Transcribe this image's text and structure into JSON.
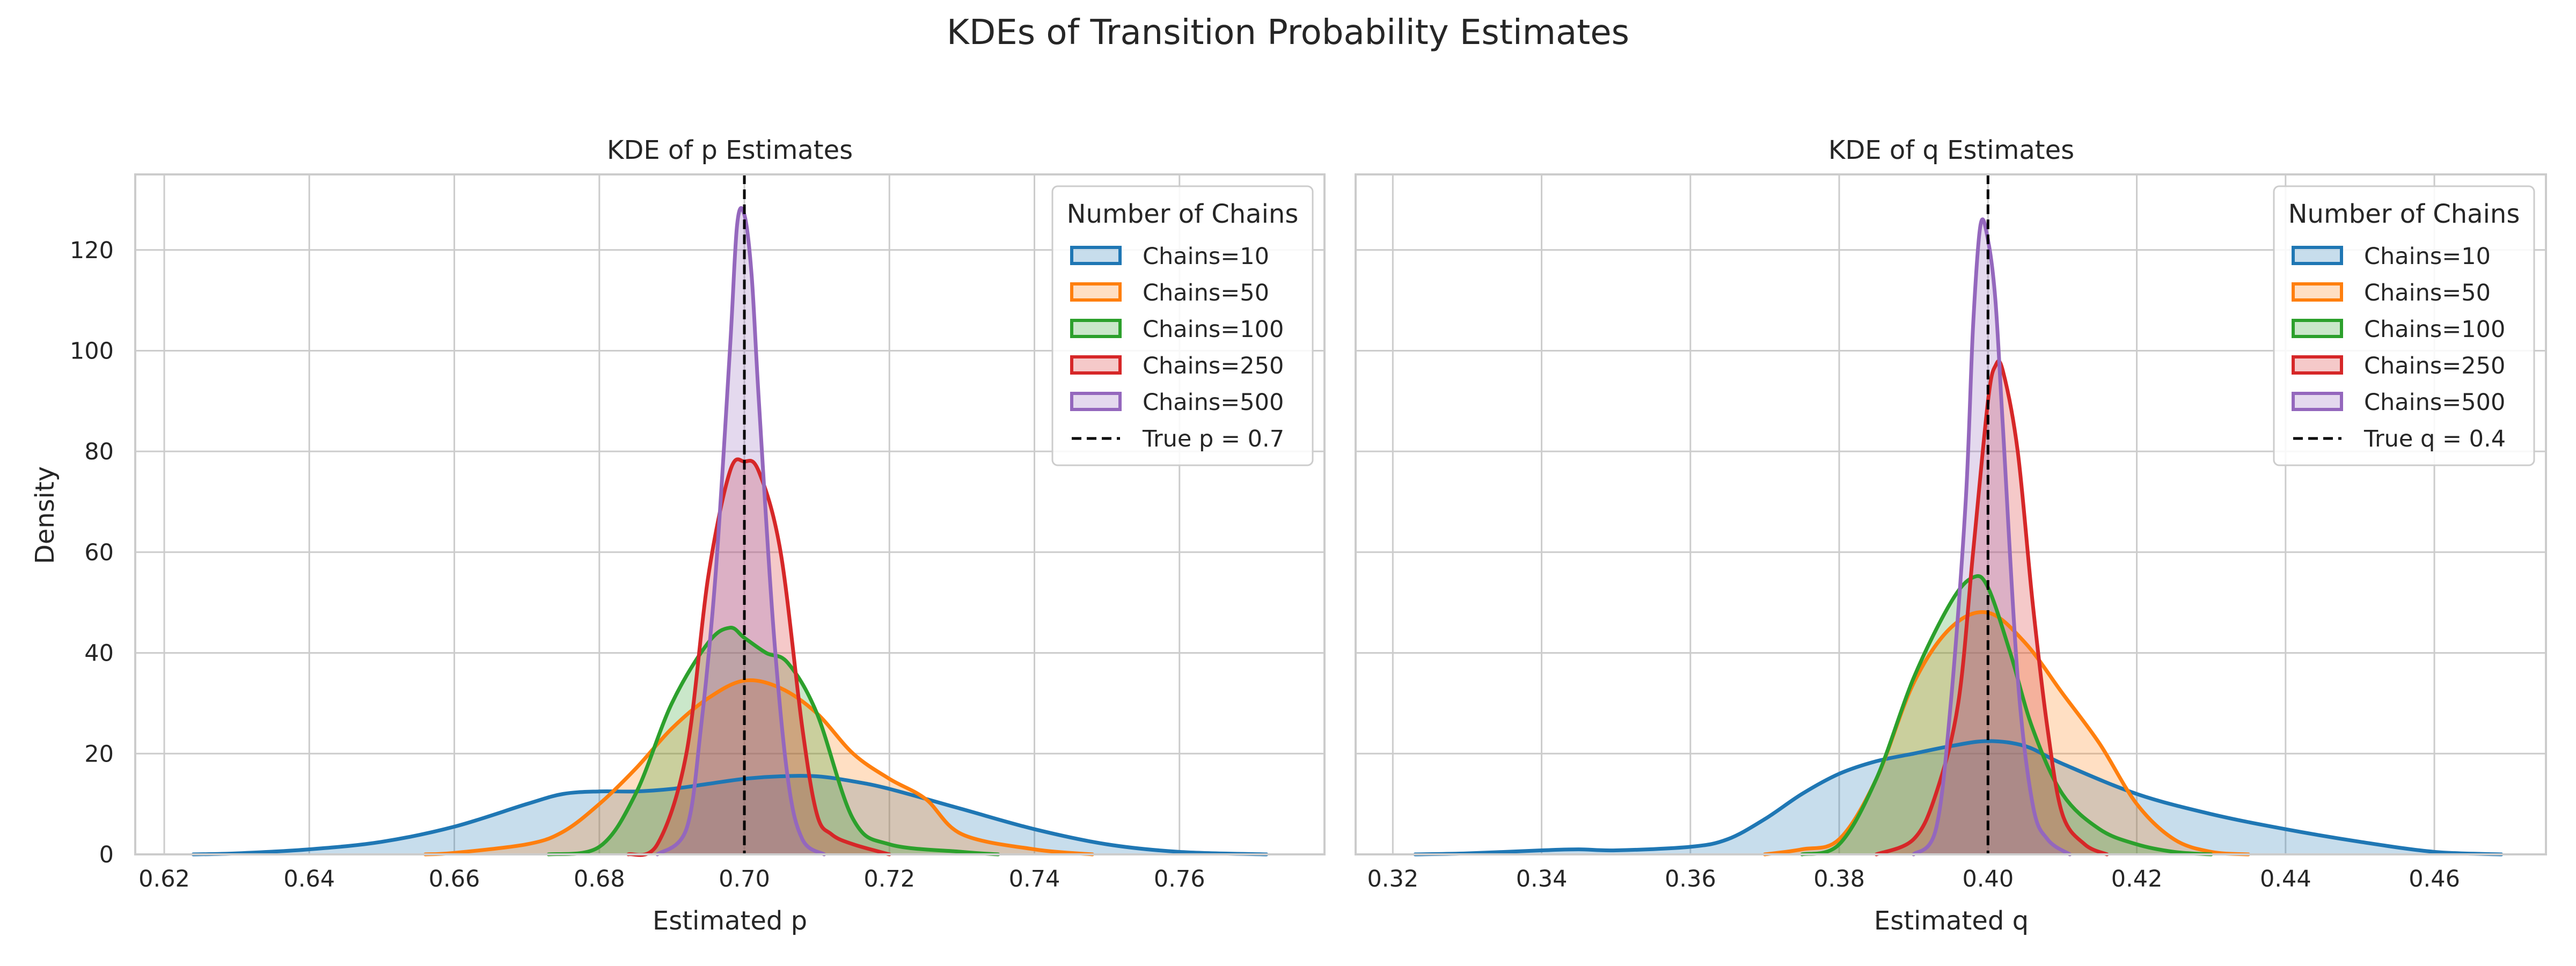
{
  "figure": {
    "suptitle": "KDEs of Transition Probability Estimates"
  },
  "chart_data": [
    {
      "type": "area",
      "title": "KDE of p Estimates",
      "xlabel": "Estimated p",
      "ylabel": "Density",
      "xlim": [
        0.616,
        0.78
      ],
      "ylim": [
        0,
        135
      ],
      "xticks": [
        0.62,
        0.64,
        0.66,
        0.68,
        0.7,
        0.72,
        0.74,
        0.76
      ],
      "xtick_labels": [
        "0.62",
        "0.64",
        "0.66",
        "0.68",
        "0.70",
        "0.72",
        "0.74",
        "0.76"
      ],
      "yticks": [
        0,
        20,
        40,
        60,
        80,
        100,
        120
      ],
      "ytick_labels": [
        "0",
        "20",
        "40",
        "60",
        "80",
        "100",
        "120"
      ],
      "grid": true,
      "legend": {
        "title": "Number of Chains",
        "placement": "top-right",
        "entries": [
          "Chains=10",
          "Chains=50",
          "Chains=100",
          "Chains=250",
          "Chains=500",
          "True p = 0.7"
        ]
      },
      "true_value": {
        "label": "True p = 0.7",
        "x": 0.7
      },
      "series": [
        {
          "name": "Chains=10",
          "color": "#1f77b4",
          "x": [
            0.624,
            0.63,
            0.64,
            0.65,
            0.66,
            0.67,
            0.675,
            0.68,
            0.685,
            0.69,
            0.695,
            0.7,
            0.705,
            0.71,
            0.715,
            0.72,
            0.73,
            0.74,
            0.75,
            0.76,
            0.772
          ],
          "y": [
            0,
            0.2,
            1,
            2.5,
            5.5,
            10,
            12,
            12.5,
            12.5,
            13,
            14,
            15,
            15.5,
            15.5,
            14.5,
            13,
            9,
            5,
            2,
            0.5,
            0
          ]
        },
        {
          "name": "Chains=50",
          "color": "#ff7f0e",
          "x": [
            0.656,
            0.66,
            0.67,
            0.675,
            0.68,
            0.685,
            0.69,
            0.695,
            0.7,
            0.705,
            0.71,
            0.715,
            0.72,
            0.725,
            0.73,
            0.74,
            0.748
          ],
          "y": [
            0,
            0.3,
            2,
            4.5,
            10,
            17,
            25,
            31,
            34.5,
            33,
            28,
            20,
            15,
            11,
            4,
            1,
            0
          ]
        },
        {
          "name": "Chains=100",
          "color": "#2ca02c",
          "x": [
            0.673,
            0.68,
            0.685,
            0.69,
            0.695,
            0.698,
            0.7,
            0.703,
            0.706,
            0.71,
            0.715,
            0.72,
            0.73,
            0.735
          ],
          "y": [
            0,
            1.5,
            12,
            30,
            42,
            45,
            43,
            40,
            38,
            28,
            7,
            2,
            0.5,
            0
          ]
        },
        {
          "name": "Chains=250",
          "color": "#d62728",
          "x": [
            0.684,
            0.688,
            0.692,
            0.695,
            0.698,
            0.7,
            0.702,
            0.705,
            0.708,
            0.71,
            0.712,
            0.715,
            0.72
          ],
          "y": [
            0,
            2,
            20,
            55,
            76,
            78,
            76,
            60,
            25,
            8,
            4,
            2,
            0
          ]
        },
        {
          "name": "Chains=500",
          "color": "#9467bd",
          "x": [
            0.688,
            0.692,
            0.694,
            0.696,
            0.698,
            0.699,
            0.7,
            0.701,
            0.702,
            0.704,
            0.706,
            0.708,
            0.711
          ],
          "y": [
            0,
            5,
            25,
            55,
            100,
            125,
            127,
            115,
            90,
            45,
            15,
            3,
            0
          ]
        }
      ]
    },
    {
      "type": "area",
      "title": "KDE of q Estimates",
      "xlabel": "Estimated q",
      "ylabel": "",
      "xlim": [
        0.315,
        0.475
      ],
      "ylim": [
        0,
        135
      ],
      "xticks": [
        0.32,
        0.34,
        0.36,
        0.38,
        0.4,
        0.42,
        0.44,
        0.46
      ],
      "xtick_labels": [
        "0.32",
        "0.34",
        "0.36",
        "0.38",
        "0.40",
        "0.42",
        "0.44",
        "0.46"
      ],
      "yticks": [
        0,
        20,
        40,
        60,
        80,
        100,
        120
      ],
      "ytick_labels": [],
      "grid": true,
      "legend": {
        "title": "Number of Chains",
        "placement": "top-right",
        "entries": [
          "Chains=10",
          "Chains=50",
          "Chains=100",
          "Chains=250",
          "Chains=500",
          "True q = 0.4"
        ]
      },
      "true_value": {
        "label": "True q = 0.4",
        "x": 0.4
      },
      "series": [
        {
          "name": "Chains=10",
          "color": "#1f77b4",
          "x": [
            0.323,
            0.33,
            0.34,
            0.345,
            0.35,
            0.36,
            0.365,
            0.37,
            0.375,
            0.38,
            0.385,
            0.39,
            0.395,
            0.4,
            0.405,
            0.41,
            0.42,
            0.43,
            0.44,
            0.45,
            0.46,
            0.469
          ],
          "y": [
            0,
            0.2,
            0.8,
            1,
            0.8,
            1.5,
            3,
            7,
            12,
            16,
            18.5,
            20,
            21.5,
            22.5,
            21.5,
            18,
            12,
            8,
            5,
            2.5,
            0.5,
            0
          ]
        },
        {
          "name": "Chains=50",
          "color": "#ff7f0e",
          "x": [
            0.37,
            0.375,
            0.38,
            0.385,
            0.39,
            0.395,
            0.4,
            0.405,
            0.41,
            0.415,
            0.42,
            0.425,
            0.43,
            0.435
          ],
          "y": [
            0,
            1,
            3,
            15,
            34,
            45,
            48,
            42,
            32,
            22,
            10,
            3,
            0.5,
            0
          ]
        },
        {
          "name": "Chains=100",
          "color": "#2ca02c",
          "x": [
            0.375,
            0.38,
            0.385,
            0.39,
            0.395,
            0.398,
            0.4,
            0.403,
            0.406,
            0.41,
            0.415,
            0.42,
            0.425,
            0.43
          ],
          "y": [
            0,
            2,
            15,
            35,
            50,
            55,
            53,
            40,
            25,
            12,
            5,
            2,
            0.5,
            0
          ]
        },
        {
          "name": "Chains=250",
          "color": "#d62728",
          "x": [
            0.385,
            0.39,
            0.393,
            0.396,
            0.398,
            0.4,
            0.401,
            0.402,
            0.404,
            0.406,
            0.408,
            0.41,
            0.413,
            0.416
          ],
          "y": [
            0,
            3,
            12,
            30,
            60,
            90,
            97,
            96,
            80,
            50,
            25,
            8,
            2,
            0
          ]
        },
        {
          "name": "Chains=500",
          "color": "#9467bd",
          "x": [
            0.39,
            0.393,
            0.395,
            0.397,
            0.398,
            0.399,
            0.4,
            0.401,
            0.402,
            0.404,
            0.406,
            0.408,
            0.411
          ],
          "y": [
            0,
            5,
            30,
            70,
            105,
            125,
            122,
            110,
            85,
            35,
            10,
            3,
            0
          ]
        }
      ]
    }
  ]
}
